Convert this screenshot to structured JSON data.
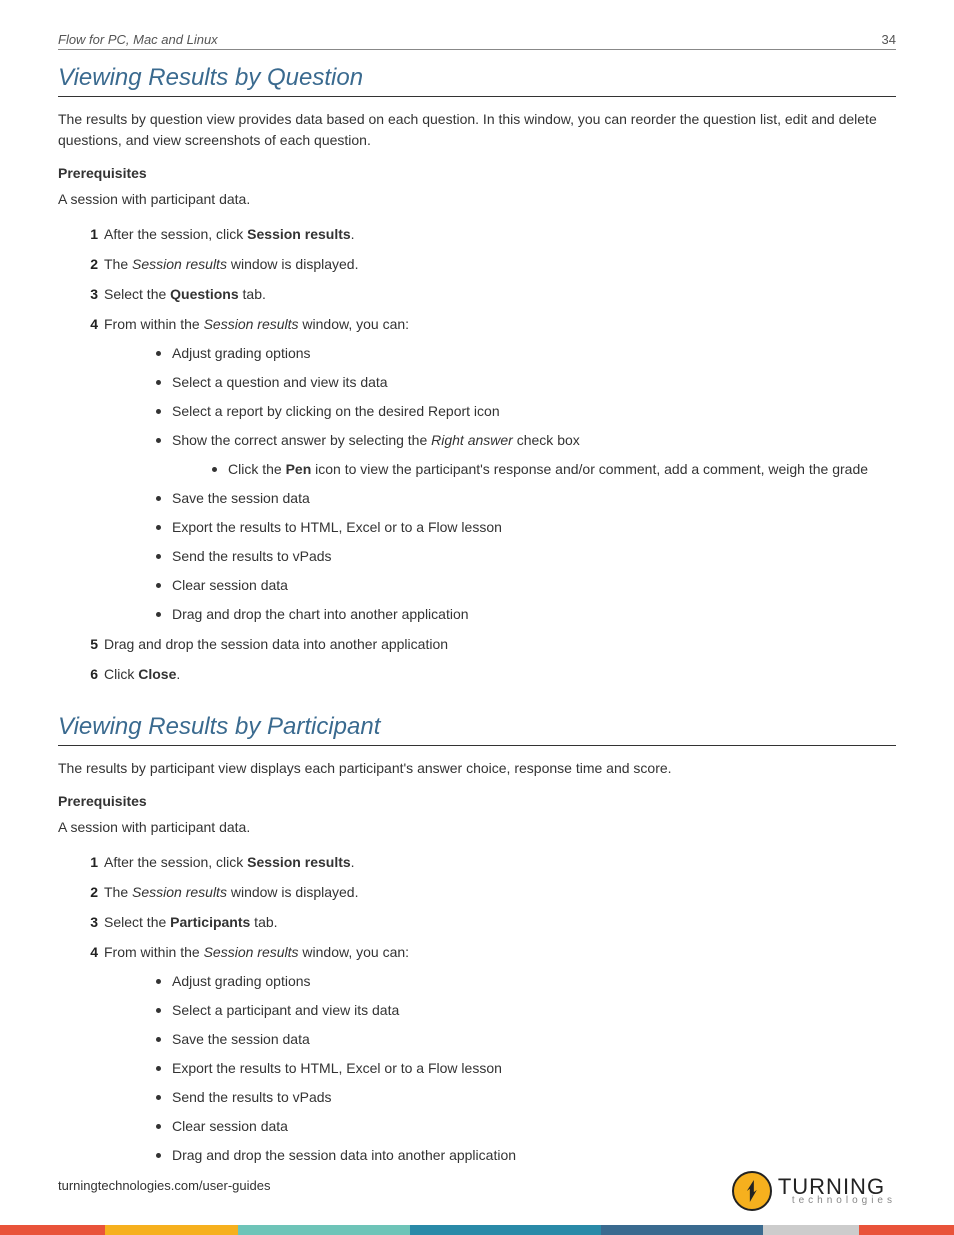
{
  "header": {
    "title": "Flow for PC, Mac and Linux",
    "page_number": "34"
  },
  "section1": {
    "heading": "Viewing Results by Question",
    "intro": "The results by question view provides data based on each question. In this window, you can reorder the question list, edit and delete questions, and view screenshots of each question.",
    "prereq_label": "Prerequisites",
    "prereq_text": "A session with participant data.",
    "steps": {
      "s1_a": "After the session, click ",
      "s1_b": "Session results",
      "s1_c": ".",
      "s2_a": "The ",
      "s2_b": "Session results",
      "s2_c": " window is displayed.",
      "s3_a": "Select the ",
      "s3_b": "Questions",
      "s3_c": " tab.",
      "s4_a": "From within the ",
      "s4_b": "Session results",
      "s4_c": " window, you can:",
      "bullets": [
        "Adjust grading options",
        "Select a question and view its data",
        "Select a report by clicking on the desired Report icon"
      ],
      "b4_a": "Show the correct answer by selecting the ",
      "b4_b": "Right answer",
      "b4_c": " check box",
      "sub_a": "Click the ",
      "sub_b": "Pen",
      "sub_c": " icon to view the participant's response and/or comment, add a comment, weigh the grade",
      "bullets_after": [
        "Save the session data",
        "Export the results to HTML, Excel or to a Flow lesson",
        "Send the results to vPads",
        "Clear session data",
        "Drag and drop the chart into another application"
      ],
      "s5": "Drag and drop the session data into another application",
      "s6_a": "Click ",
      "s6_b": "Close",
      "s6_c": "."
    }
  },
  "section2": {
    "heading": "Viewing Results by Participant",
    "intro": "The results by participant view displays each participant's answer choice, response time and score.",
    "prereq_label": "Prerequisites",
    "prereq_text": "A session with participant data.",
    "steps": {
      "s1_a": "After the session, click ",
      "s1_b": "Session results",
      "s1_c": ".",
      "s2_a": "The ",
      "s2_b": "Session results",
      "s2_c": " window is displayed.",
      "s3_a": "Select the ",
      "s3_b": "Participants",
      "s3_c": " tab.",
      "s4_a": "From within the ",
      "s4_b": "Session results",
      "s4_c": " window, you can:",
      "bullets": [
        "Adjust grading options",
        "Select a participant and view its data",
        "Save the session data",
        "Export the results to HTML, Excel or to a Flow lesson",
        "Send the results to vPads",
        "Clear session data",
        "Drag and drop the session data into another application"
      ]
    }
  },
  "footer": {
    "url": "turningtechnologies.com/user-guides",
    "logo_main": "TURNING",
    "logo_sub": "technologies"
  },
  "stripe_colors": [
    "#e9533a",
    "#f6b01e",
    "#6ec4b8",
    "#2a8aa8",
    "#3a6a8f",
    "#cccccc",
    "#e9533a"
  ],
  "stripe_widths": [
    "11%",
    "14%",
    "18%",
    "20%",
    "17%",
    "10%",
    "10%"
  ]
}
